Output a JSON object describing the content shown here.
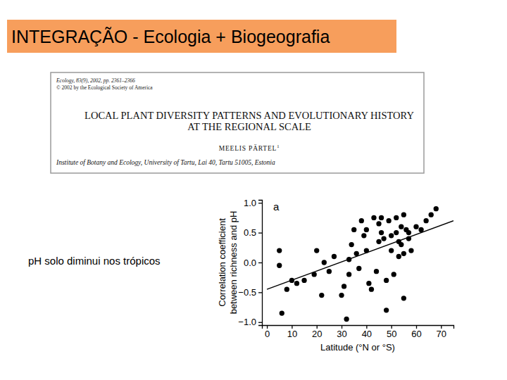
{
  "slide": {
    "title": "INTEGRAÇÃO - Ecologia + Biogeografia",
    "paper": {
      "journal": "Ecology, 83(9), 2002, pp. 2361–2366",
      "copyright": "© 2002 by the Ecological Society of America",
      "title": [
        "LOCAL PLANT DIVERSITY PATTERNS AND EVOLUTIONARY HISTORY",
        "AT THE REGIONAL SCALE"
      ],
      "author": "MEELIS PÄRTEL",
      "author_note": "1",
      "affiliation": "Institute of Botany and Ecology, University of Tartu, Lai 40, Tartu 51005, Estonia"
    },
    "note": "pH solo diminui nos trópicos"
  },
  "chart_data": {
    "type": "scatter",
    "annotations": [
      "a"
    ],
    "x_label": "Latitude (°N or °S)",
    "y_label": [
      "Correlation coefficient",
      "between richness and pH"
    ],
    "xlim": [
      -2,
      75
    ],
    "ylim": [
      -1.05,
      1.05
    ],
    "xticks": [
      0,
      10,
      20,
      30,
      40,
      50,
      60,
      70
    ],
    "yticks": [
      {
        "value": -1.0,
        "label": "−1.0"
      },
      {
        "value": -0.5,
        "label": "−0.5"
      },
      {
        "value": 0,
        "label": "0.0"
      },
      0.5,
      {
        "value": 1.0,
        "label": "1.0"
      }
    ],
    "grid": false,
    "series": [
      {
        "type": "scatter",
        "marker": "circle",
        "color": "#000000",
        "x": [
          5,
          5,
          6,
          8,
          10,
          12,
          15,
          19,
          20,
          22,
          23,
          25,
          27,
          30,
          31,
          32,
          33,
          33,
          34,
          35,
          36,
          37,
          38,
          39,
          40,
          40,
          41,
          42,
          43,
          44,
          45,
          45,
          46,
          46,
          47,
          48,
          48,
          49,
          50,
          50,
          51,
          52,
          52,
          53,
          53,
          54,
          54,
          55,
          55,
          55,
          56,
          57,
          57,
          58,
          60,
          62,
          64,
          66,
          68
        ],
        "values": [
          0.2,
          -0.05,
          -0.85,
          -0.45,
          -0.3,
          -0.35,
          -0.3,
          -0.2,
          0.2,
          -0.55,
          0.0,
          -0.15,
          0.1,
          -0.55,
          -0.4,
          -0.95,
          -0.2,
          0.05,
          0.3,
          0.55,
          0.15,
          -0.1,
          0.7,
          0.45,
          0.2,
          0.55,
          -0.35,
          -0.45,
          0.75,
          -0.15,
          0.65,
          0.35,
          0.75,
          0.5,
          0.4,
          -0.3,
          -0.8,
          0.7,
          0.45,
          0.2,
          -0.2,
          0.75,
          0.5,
          0.1,
          0.35,
          0.6,
          0.3,
          0.8,
          0.15,
          -0.6,
          0.55,
          0.5,
          0.4,
          0.2,
          0.6,
          0.55,
          0.7,
          0.8,
          0.9
        ]
      },
      {
        "type": "line",
        "line_style": "solid",
        "color": "#000000",
        "x": [
          0,
          75
        ],
        "values": [
          -0.45,
          0.7
        ]
      }
    ]
  }
}
